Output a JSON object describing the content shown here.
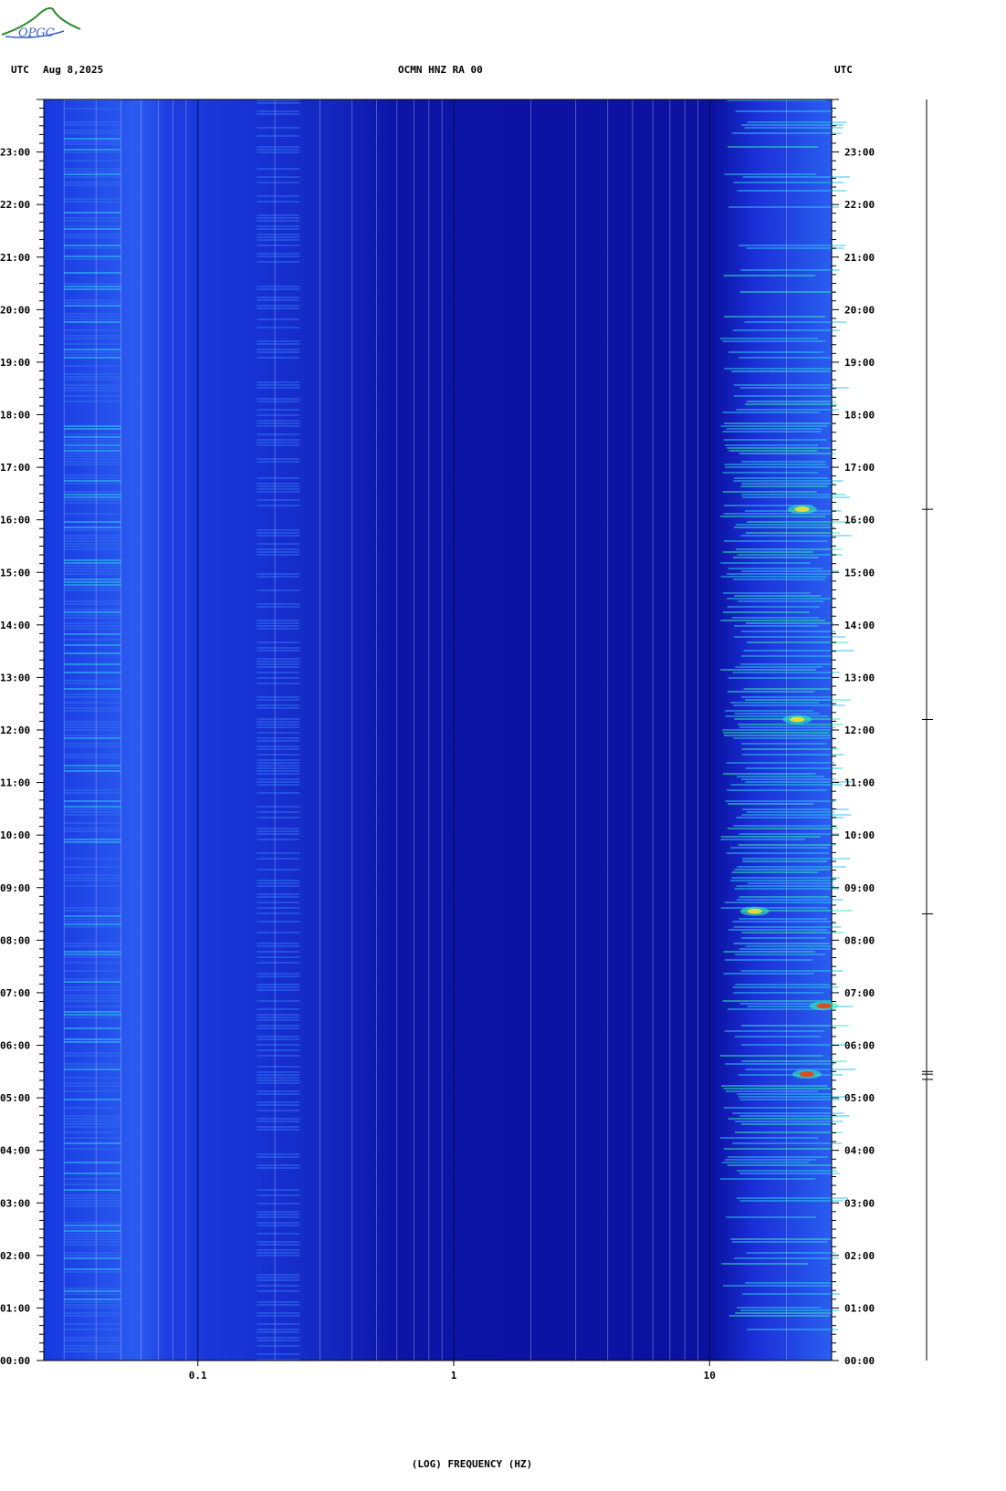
{
  "header": {
    "left_tz": "UTC",
    "date": "Aug 8,2025",
    "station": "OCMN HNZ RA 00",
    "right_tz": "UTC"
  },
  "logo": {
    "text": "OPGC",
    "colors": [
      "#2e8b2e",
      "#3a5fcd"
    ]
  },
  "chart_data": {
    "type": "heatmap",
    "title": "OCMN HNZ RA 00",
    "xlabel": "(LOG) FREQUENCY (HZ)",
    "ylabel": "",
    "x_scale": "log",
    "xlim": [
      0.025,
      30
    ],
    "ylim_hours": [
      0,
      24
    ],
    "x_tick_labels": [
      {
        "value": 0.1,
        "label": "0.1"
      },
      {
        "value": 1,
        "label": "1"
      },
      {
        "value": 10,
        "label": "10"
      }
    ],
    "y_tick_labels": [
      "00:00",
      "01:00",
      "02:00",
      "03:00",
      "04:00",
      "05:00",
      "06:00",
      "07:00",
      "08:00",
      "09:00",
      "10:00",
      "11:00",
      "12:00",
      "13:00",
      "14:00",
      "15:00",
      "16:00",
      "17:00",
      "18:00",
      "19:00",
      "20:00",
      "21:00",
      "22:00",
      "23:00"
    ],
    "colormap": [
      "#0a0a8a",
      "#1a2ed6",
      "#2f6bf0",
      "#2fc8f0",
      "#36f0b0",
      "#f0e030",
      "#f04010"
    ],
    "hotspots": [
      {
        "freq_hz": 24,
        "hour": 5.45,
        "level": "high"
      },
      {
        "freq_hz": 28,
        "hour": 6.75,
        "level": "high"
      },
      {
        "freq_hz": 22,
        "hour": 12.2,
        "level": "medium"
      },
      {
        "freq_hz": 23,
        "hour": 16.2,
        "level": "medium"
      },
      {
        "freq_hz": 15,
        "hour": 8.55,
        "level": "medium"
      }
    ]
  }
}
